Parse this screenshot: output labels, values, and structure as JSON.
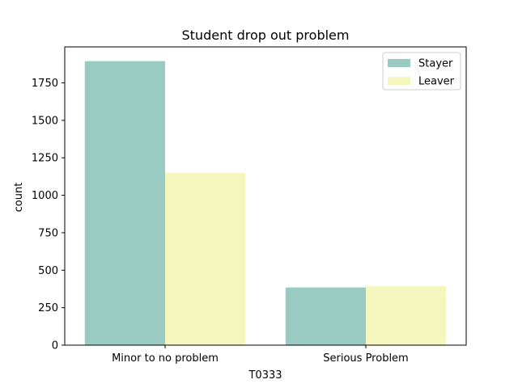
{
  "chart_data": {
    "type": "bar",
    "title": "Student drop out problem",
    "xlabel": "T0333",
    "ylabel": "count",
    "categories": [
      "Minor to no problem",
      "Serious Problem"
    ],
    "series": [
      {
        "name": "Stayer",
        "values": [
          1895,
          385
        ],
        "color": "#99cbc2"
      },
      {
        "name": "Leaver",
        "values": [
          1148,
          393
        ],
        "color": "#f5f5be"
      }
    ],
    "ylim": [
      0,
      1990
    ],
    "yticks": [
      0,
      250,
      500,
      750,
      1000,
      1250,
      1500,
      1750
    ],
    "legend": "top-right",
    "grid": false
  }
}
